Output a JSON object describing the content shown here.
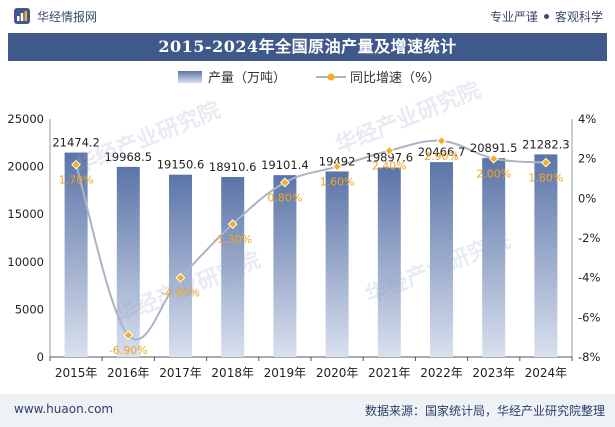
{
  "header": {
    "brand": "华经情报网",
    "tagline_left": "专业严谨",
    "tagline_right": "客观科学"
  },
  "chart_title": "2015-2024年全国原油产量及增速统计",
  "watermark": "华经产业研究院",
  "footer": {
    "website": "www.huaon.com",
    "source": "数据来源：国家统计局，华经产业研究院整理"
  },
  "colors": {
    "brand": "#3f5a8a",
    "bar_top": "#5b74a8",
    "bar_bottom": "#d9e0ee",
    "line": "#a9b4c4",
    "marker": "#f3b01c",
    "growth_label": "#f3a51c"
  },
  "chart_data": {
    "type": "bar+line",
    "categories": [
      "2015年",
      "2016年",
      "2017年",
      "2018年",
      "2019年",
      "2020年",
      "2021年",
      "2022年",
      "2023年",
      "2024年"
    ],
    "series": [
      {
        "name": "产量（万吨）",
        "type": "bar",
        "axis": "left",
        "values": [
          21474.2,
          19968.5,
          19150.6,
          18910.6,
          19101.4,
          19492,
          19897.6,
          20466.7,
          20891.5,
          21282.3
        ],
        "labels": [
          "21474.2",
          "19968.5",
          "19150.6",
          "18910.6",
          "19101.4",
          "19492",
          "19897.6",
          "20466.7",
          "20891.5",
          "21282.3"
        ]
      },
      {
        "name": "同比增速（%）",
        "type": "line",
        "axis": "right",
        "values": [
          1.7,
          -6.9,
          -4.0,
          -1.3,
          0.8,
          1.6,
          2.4,
          2.9,
          2.0,
          1.8
        ],
        "labels": [
          "1.70%",
          "-6.90%",
          "-4.00%",
          "-1.30%",
          "0.80%",
          "1.60%",
          "2.40%",
          "2.90%",
          "2.00%",
          "1.80%"
        ]
      }
    ],
    "y_left": {
      "range": [
        0,
        25000
      ],
      "ticks": [
        "0",
        "5000",
        "10000",
        "15000",
        "20000",
        "25000"
      ]
    },
    "y_right": {
      "range": [
        -8,
        4
      ],
      "ticks": [
        "-8%",
        "-6%",
        "-4%",
        "-2%",
        "0%",
        "2%",
        "4%"
      ]
    },
    "legend_position": "top-center",
    "grid": false
  }
}
